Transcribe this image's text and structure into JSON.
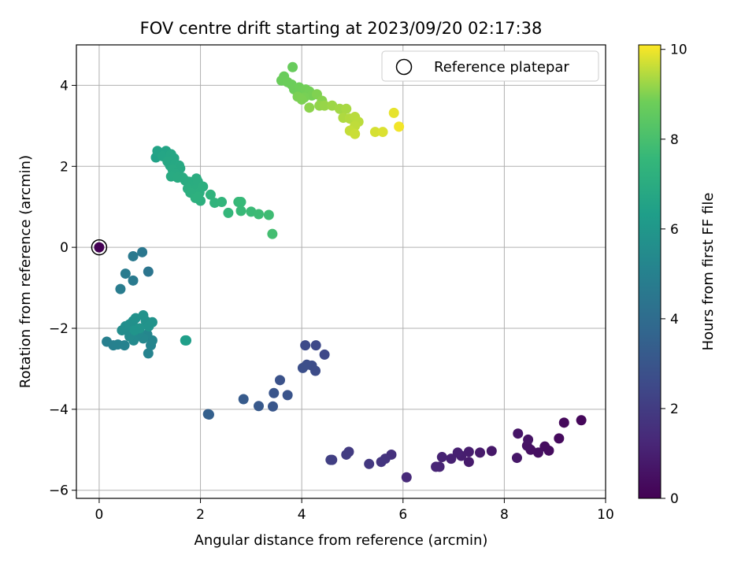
{
  "chart_data": {
    "type": "scatter",
    "title": "FOV centre drift starting at 2023/09/20 02:17:38",
    "xlabel": "Angular distance from reference (arcmin)",
    "ylabel": "Rotation from reference (arcmin)",
    "xlim": [
      -0.45,
      10
    ],
    "ylim": [
      -6.2,
      5.0
    ],
    "x_ticks": [
      0,
      2,
      4,
      6,
      8,
      10
    ],
    "y_ticks": [
      -6,
      -4,
      -2,
      0,
      2,
      4
    ],
    "x_tick_labels": [
      "0",
      "2",
      "4",
      "6",
      "8",
      "10"
    ],
    "y_tick_labels": [
      "−6",
      "−4",
      "−2",
      "0",
      "2",
      "4"
    ],
    "grid": true,
    "legend": {
      "position": "top-right",
      "entries": [
        "Reference platepar"
      ]
    },
    "colorbar": {
      "label": "Hours from first FF file",
      "colormap": "viridis",
      "range": [
        0,
        10.1
      ],
      "ticks": [
        0,
        2,
        4,
        6,
        8,
        10
      ],
      "tick_labels": [
        "0",
        "2",
        "4",
        "6",
        "8",
        "10"
      ]
    },
    "reference_point": {
      "x": 0,
      "y": 0
    },
    "points": [
      {
        "x": 0.0,
        "y": 0.0,
        "h": 0.0
      },
      {
        "x": 9.52,
        "y": -4.27,
        "h": 0.2
      },
      {
        "x": 9.18,
        "y": -4.33,
        "h": 0.25
      },
      {
        "x": 9.08,
        "y": -4.72,
        "h": 0.3
      },
      {
        "x": 8.88,
        "y": -5.02,
        "h": 0.35
      },
      {
        "x": 8.8,
        "y": -4.92,
        "h": 0.4
      },
      {
        "x": 8.67,
        "y": -5.07,
        "h": 0.45
      },
      {
        "x": 8.52,
        "y": -5.0,
        "h": 0.5
      },
      {
        "x": 8.45,
        "y": -4.9,
        "h": 0.55
      },
      {
        "x": 8.47,
        "y": -4.75,
        "h": 0.6
      },
      {
        "x": 8.27,
        "y": -4.6,
        "h": 0.65
      },
      {
        "x": 8.25,
        "y": -5.2,
        "h": 0.7
      },
      {
        "x": 7.75,
        "y": -5.03,
        "h": 0.75
      },
      {
        "x": 7.52,
        "y": -5.07,
        "h": 0.8
      },
      {
        "x": 7.3,
        "y": -5.3,
        "h": 0.85
      },
      {
        "x": 7.3,
        "y": -5.05,
        "h": 0.9
      },
      {
        "x": 7.15,
        "y": -5.15,
        "h": 0.95
      },
      {
        "x": 7.08,
        "y": -5.07,
        "h": 1.0
      },
      {
        "x": 6.95,
        "y": -5.22,
        "h": 1.05
      },
      {
        "x": 6.77,
        "y": -5.18,
        "h": 1.1
      },
      {
        "x": 6.72,
        "y": -5.42,
        "h": 1.15
      },
      {
        "x": 6.65,
        "y": -5.42,
        "h": 1.2
      },
      {
        "x": 6.07,
        "y": -5.68,
        "h": 1.35
      },
      {
        "x": 5.77,
        "y": -5.12,
        "h": 1.6
      },
      {
        "x": 5.65,
        "y": -5.22,
        "h": 1.7
      },
      {
        "x": 5.57,
        "y": -5.3,
        "h": 1.75
      },
      {
        "x": 5.33,
        "y": -5.35,
        "h": 1.85
      },
      {
        "x": 4.93,
        "y": -5.05,
        "h": 1.95
      },
      {
        "x": 4.88,
        "y": -5.12,
        "h": 2.0
      },
      {
        "x": 4.6,
        "y": -5.25,
        "h": 2.05
      },
      {
        "x": 4.57,
        "y": -5.25,
        "h": 2.1
      },
      {
        "x": 4.45,
        "y": -2.65,
        "h": 2.45
      },
      {
        "x": 4.28,
        "y": -2.42,
        "h": 2.5
      },
      {
        "x": 4.07,
        "y": -2.42,
        "h": 2.55
      },
      {
        "x": 4.27,
        "y": -3.05,
        "h": 2.6
      },
      {
        "x": 4.2,
        "y": -2.92,
        "h": 2.65
      },
      {
        "x": 4.1,
        "y": -2.9,
        "h": 2.7
      },
      {
        "x": 4.02,
        "y": -2.98,
        "h": 2.75
      },
      {
        "x": 3.57,
        "y": -3.28,
        "h": 2.85
      },
      {
        "x": 3.72,
        "y": -3.65,
        "h": 2.95
      },
      {
        "x": 3.45,
        "y": -3.6,
        "h": 3.0
      },
      {
        "x": 3.43,
        "y": -3.93,
        "h": 3.05
      },
      {
        "x": 3.15,
        "y": -3.92,
        "h": 3.15
      },
      {
        "x": 2.85,
        "y": -3.75,
        "h": 3.25
      },
      {
        "x": 2.15,
        "y": -4.12,
        "h": 3.4
      },
      {
        "x": 2.17,
        "y": -4.13,
        "h": 3.45
      },
      {
        "x": 0.97,
        "y": -0.6,
        "h": 4.4
      },
      {
        "x": 0.85,
        "y": -0.12,
        "h": 4.5
      },
      {
        "x": 0.67,
        "y": -0.22,
        "h": 4.6
      },
      {
        "x": 0.67,
        "y": -0.82,
        "h": 4.65
      },
      {
        "x": 0.52,
        "y": -0.65,
        "h": 4.7
      },
      {
        "x": 0.42,
        "y": -1.03,
        "h": 4.75
      },
      {
        "x": 0.15,
        "y": -2.33,
        "h": 4.9
      },
      {
        "x": 0.28,
        "y": -2.42,
        "h": 4.95
      },
      {
        "x": 0.37,
        "y": -2.4,
        "h": 5.0
      },
      {
        "x": 0.5,
        "y": -2.42,
        "h": 5.05
      },
      {
        "x": 0.97,
        "y": -2.62,
        "h": 5.1
      },
      {
        "x": 1.02,
        "y": -2.42,
        "h": 5.15
      },
      {
        "x": 1.05,
        "y": -2.3,
        "h": 5.2
      },
      {
        "x": 0.95,
        "y": -2.15,
        "h": 5.25
      },
      {
        "x": 0.87,
        "y": -2.25,
        "h": 5.3
      },
      {
        "x": 0.78,
        "y": -2.12,
        "h": 5.35
      },
      {
        "x": 0.68,
        "y": -2.3,
        "h": 5.4
      },
      {
        "x": 0.6,
        "y": -2.2,
        "h": 5.45
      },
      {
        "x": 0.55,
        "y": -2.05,
        "h": 5.5
      },
      {
        "x": 0.45,
        "y": -2.05,
        "h": 5.55
      },
      {
        "x": 0.52,
        "y": -1.95,
        "h": 5.6
      },
      {
        "x": 0.6,
        "y": -1.9,
        "h": 5.65
      },
      {
        "x": 0.67,
        "y": -1.82,
        "h": 5.7
      },
      {
        "x": 0.72,
        "y": -1.75,
        "h": 5.72
      },
      {
        "x": 0.87,
        "y": -1.68,
        "h": 5.75
      },
      {
        "x": 0.92,
        "y": -1.82,
        "h": 5.78
      },
      {
        "x": 0.98,
        "y": -1.95,
        "h": 5.8
      },
      {
        "x": 1.05,
        "y": -1.85,
        "h": 5.82
      },
      {
        "x": 0.8,
        "y": -2.0,
        "h": 5.85
      },
      {
        "x": 0.7,
        "y": -2.05,
        "h": 5.88
      },
      {
        "x": 1.72,
        "y": -2.3,
        "h": 6.3
      },
      {
        "x": 1.7,
        "y": -2.3,
        "h": 6.35
      },
      {
        "x": 1.12,
        "y": 2.22,
        "h": 6.5
      },
      {
        "x": 1.15,
        "y": 2.38,
        "h": 6.55
      },
      {
        "x": 1.32,
        "y": 2.38,
        "h": 6.6
      },
      {
        "x": 1.25,
        "y": 2.25,
        "h": 6.65
      },
      {
        "x": 1.42,
        "y": 2.3,
        "h": 6.7
      },
      {
        "x": 1.48,
        "y": 2.2,
        "h": 6.72
      },
      {
        "x": 1.35,
        "y": 2.12,
        "h": 6.75
      },
      {
        "x": 1.4,
        "y": 2.02,
        "h": 6.78
      },
      {
        "x": 1.5,
        "y": 2.05,
        "h": 6.8
      },
      {
        "x": 1.58,
        "y": 2.02,
        "h": 6.82
      },
      {
        "x": 1.6,
        "y": 1.95,
        "h": 6.84
      },
      {
        "x": 1.45,
        "y": 1.92,
        "h": 6.86
      },
      {
        "x": 1.5,
        "y": 1.82,
        "h": 6.88
      },
      {
        "x": 1.42,
        "y": 1.75,
        "h": 6.9
      },
      {
        "x": 1.55,
        "y": 1.72,
        "h": 6.92
      },
      {
        "x": 1.65,
        "y": 1.72,
        "h": 6.94
      },
      {
        "x": 1.7,
        "y": 1.65,
        "h": 6.96
      },
      {
        "x": 1.78,
        "y": 1.62,
        "h": 6.98
      },
      {
        "x": 1.85,
        "y": 1.58,
        "h": 7.0
      },
      {
        "x": 1.92,
        "y": 1.7,
        "h": 7.02
      },
      {
        "x": 1.95,
        "y": 1.62,
        "h": 7.04
      },
      {
        "x": 1.75,
        "y": 1.45,
        "h": 7.06
      },
      {
        "x": 1.88,
        "y": 1.42,
        "h": 7.08
      },
      {
        "x": 1.98,
        "y": 1.35,
        "h": 7.1
      },
      {
        "x": 2.05,
        "y": 1.5,
        "h": 7.12
      },
      {
        "x": 1.8,
        "y": 1.35,
        "h": 7.14
      },
      {
        "x": 1.9,
        "y": 1.22,
        "h": 7.16
      },
      {
        "x": 2.0,
        "y": 1.15,
        "h": 7.18
      },
      {
        "x": 1.95,
        "y": 1.25,
        "h": 7.2
      },
      {
        "x": 2.2,
        "y": 1.3,
        "h": 7.3
      },
      {
        "x": 2.28,
        "y": 1.1,
        "h": 7.35
      },
      {
        "x": 2.42,
        "y": 1.12,
        "h": 7.4
      },
      {
        "x": 2.55,
        "y": 0.85,
        "h": 7.5
      },
      {
        "x": 2.75,
        "y": 1.12,
        "h": 7.6
      },
      {
        "x": 2.8,
        "y": 1.12,
        "h": 7.62
      },
      {
        "x": 2.8,
        "y": 0.9,
        "h": 7.65
      },
      {
        "x": 3.0,
        "y": 0.88,
        "h": 7.7
      },
      {
        "x": 3.15,
        "y": 0.82,
        "h": 7.75
      },
      {
        "x": 3.35,
        "y": 0.8,
        "h": 7.8
      },
      {
        "x": 3.42,
        "y": 0.33,
        "h": 7.9
      },
      {
        "x": 3.82,
        "y": 4.45,
        "h": 8.7
      },
      {
        "x": 3.65,
        "y": 4.22,
        "h": 8.72
      },
      {
        "x": 3.6,
        "y": 4.12,
        "h": 8.74
      },
      {
        "x": 3.72,
        "y": 4.08,
        "h": 8.76
      },
      {
        "x": 3.8,
        "y": 4.02,
        "h": 8.78
      },
      {
        "x": 3.85,
        "y": 3.9,
        "h": 8.8
      },
      {
        "x": 3.95,
        "y": 3.95,
        "h": 8.82
      },
      {
        "x": 4.02,
        "y": 3.85,
        "h": 8.84
      },
      {
        "x": 4.08,
        "y": 3.9,
        "h": 8.86
      },
      {
        "x": 4.15,
        "y": 3.85,
        "h": 8.88
      },
      {
        "x": 4.2,
        "y": 3.75,
        "h": 8.9
      },
      {
        "x": 4.05,
        "y": 3.7,
        "h": 8.92
      },
      {
        "x": 3.92,
        "y": 3.72,
        "h": 8.94
      },
      {
        "x": 4.0,
        "y": 3.65,
        "h": 8.96
      },
      {
        "x": 4.3,
        "y": 3.78,
        "h": 9.0
      },
      {
        "x": 4.4,
        "y": 3.62,
        "h": 9.05
      },
      {
        "x": 4.15,
        "y": 3.45,
        "h": 9.1
      },
      {
        "x": 4.35,
        "y": 3.5,
        "h": 9.15
      },
      {
        "x": 4.45,
        "y": 3.5,
        "h": 9.2
      },
      {
        "x": 4.6,
        "y": 3.5,
        "h": 9.25
      },
      {
        "x": 4.75,
        "y": 3.42,
        "h": 9.3
      },
      {
        "x": 4.88,
        "y": 3.42,
        "h": 9.35
      },
      {
        "x": 4.82,
        "y": 3.2,
        "h": 9.4
      },
      {
        "x": 4.95,
        "y": 3.18,
        "h": 9.45
      },
      {
        "x": 5.05,
        "y": 3.22,
        "h": 9.5
      },
      {
        "x": 5.12,
        "y": 3.1,
        "h": 9.52
      },
      {
        "x": 5.05,
        "y": 3.0,
        "h": 9.55
      },
      {
        "x": 4.95,
        "y": 2.88,
        "h": 9.6
      },
      {
        "x": 5.05,
        "y": 2.8,
        "h": 9.65
      },
      {
        "x": 5.45,
        "y": 2.85,
        "h": 9.75
      },
      {
        "x": 5.6,
        "y": 2.85,
        "h": 9.8
      },
      {
        "x": 5.82,
        "y": 3.32,
        "h": 9.9
      },
      {
        "x": 5.92,
        "y": 2.98,
        "h": 10.0
      }
    ]
  }
}
